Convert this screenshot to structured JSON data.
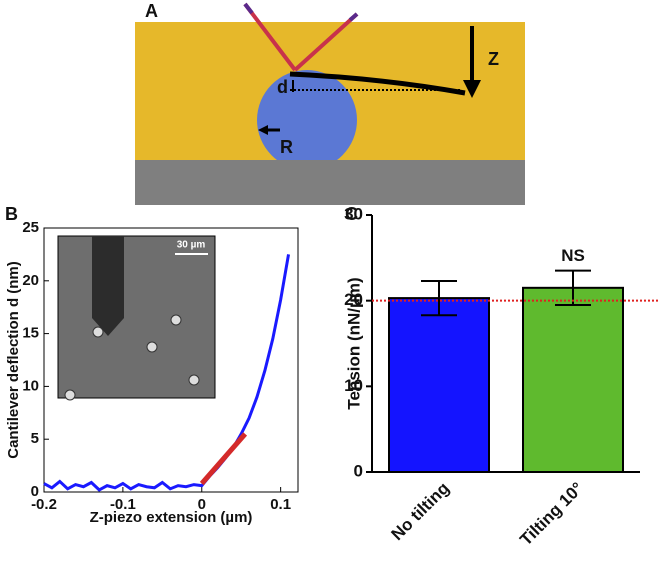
{
  "diagram": {
    "panel": "A",
    "z_label": "Z",
    "d_label": "d",
    "r_label": "R"
  },
  "chart_data": [
    {
      "type": "line",
      "panel": "B",
      "x_label": "Z-piezo extension (µm)",
      "y_label": "Cantilever deflection d (nm)",
      "inset_label": "30 µm",
      "x": [
        -0.2,
        -0.19,
        -0.18,
        -0.17,
        -0.16,
        -0.15,
        -0.14,
        -0.13,
        -0.12,
        -0.11,
        -0.1,
        -0.09,
        -0.08,
        -0.07,
        -0.06,
        -0.05,
        -0.04,
        -0.03,
        -0.02,
        -0.01,
        0,
        0.01,
        0.02,
        0.03,
        0.04,
        0.05,
        0.06,
        0.07,
        0.08,
        0.09,
        0.1,
        0.11
      ],
      "series": [
        {
          "color": "#1a1aff",
          "values": [
            0.8,
            0.4,
            1.0,
            0.3,
            0.7,
            0.5,
            0.9,
            0.2,
            0.6,
            0.4,
            0.8,
            0.3,
            0.7,
            0.5,
            0.4,
            0.9,
            0.3,
            0.6,
            0.5,
            0.7,
            0.6,
            1.5,
            2.3,
            3.2,
            4.2,
            5.5,
            7.0,
            9.0,
            11.5,
            14.5,
            18.2,
            22.5
          ]
        }
      ],
      "fit": {
        "color": "#d42a2a",
        "x": [
          0,
          0.055
        ],
        "values": [
          0.8,
          5.5
        ]
      },
      "xlim": [
        -0.2,
        0.122
      ],
      "xticks": [
        -0.2,
        -0.1,
        0,
        0.1
      ],
      "ylim": [
        0,
        25
      ],
      "yticks": [
        0,
        5,
        10,
        15,
        20,
        25
      ]
    },
    {
      "type": "bar",
      "panel": "C",
      "y_label": "Tension (nN/µm)",
      "categories": [
        "No tilting",
        "Tilting 10°"
      ],
      "values": [
        20.3,
        21.5
      ],
      "errors": [
        2.0,
        2.0
      ],
      "colors": [
        "#1414ff",
        "#5fba2e"
      ],
      "reference": {
        "value": 20,
        "color": "#e02020"
      },
      "annotations": [
        null,
        "NS"
      ],
      "ylim": [
        0,
        30
      ],
      "yticks": [
        0,
        10,
        20,
        30
      ]
    }
  ]
}
